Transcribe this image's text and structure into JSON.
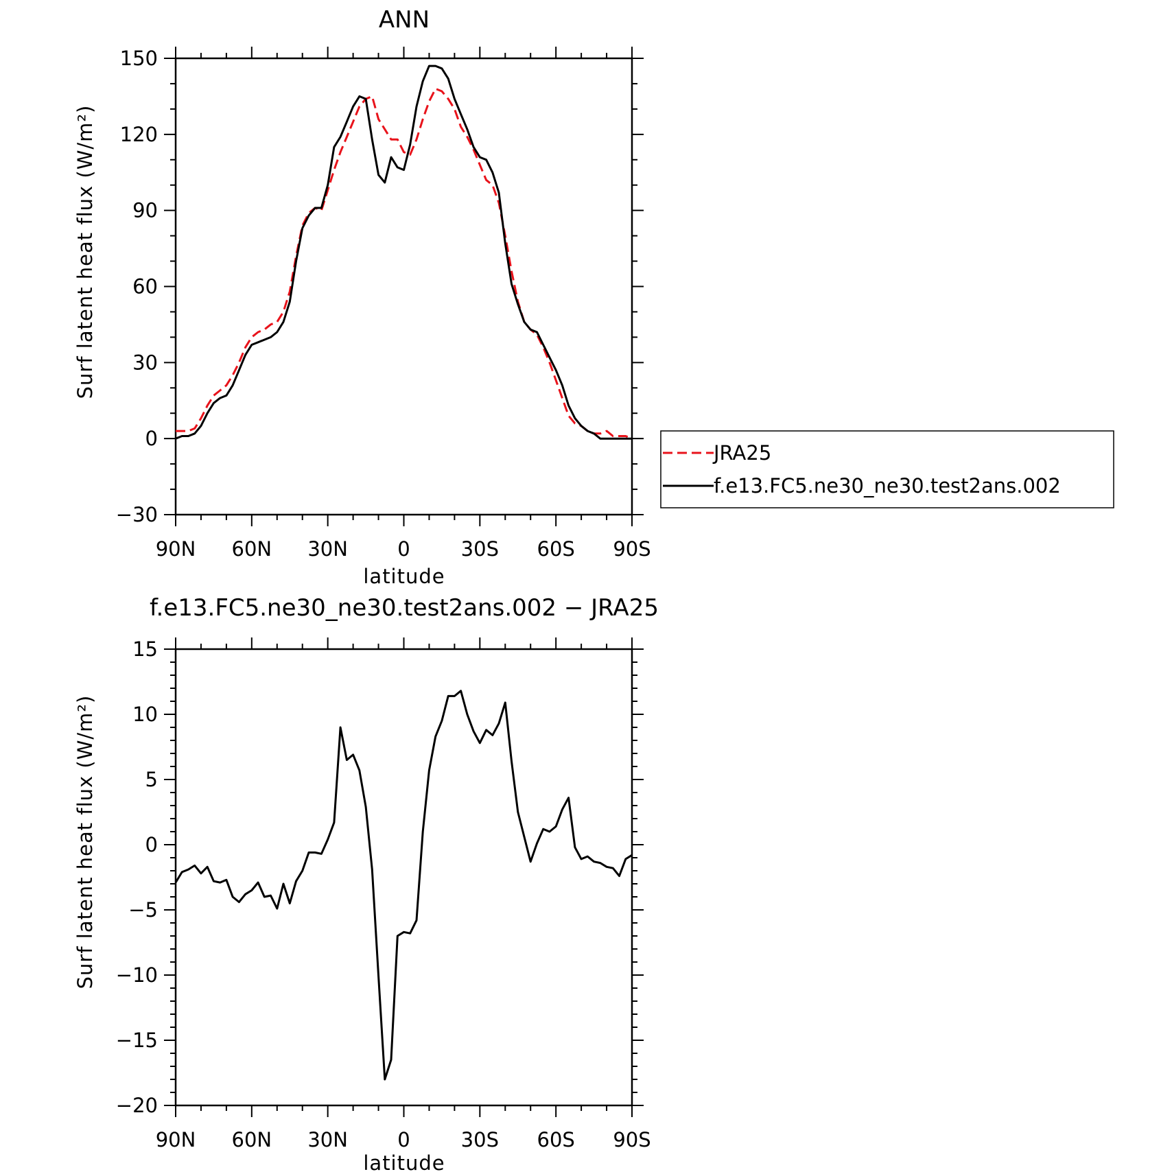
{
  "chart_data": [
    {
      "type": "line",
      "title": "ANN",
      "xlabel": "latitude",
      "ylabel": "Surf latent heat flux (W/m²)",
      "xlim": [
        90,
        -90
      ],
      "ylim": [
        -30,
        150
      ],
      "x_ticks": [
        {
          "value": 90,
          "label": "90N"
        },
        {
          "value": 60,
          "label": "60N"
        },
        {
          "value": 30,
          "label": "30N"
        },
        {
          "value": 0,
          "label": "0"
        },
        {
          "value": -30,
          "label": "30S"
        },
        {
          "value": -60,
          "label": "60S"
        },
        {
          "value": -90,
          "label": "90S"
        }
      ],
      "y_ticks": [
        {
          "value": 150,
          "label": "150"
        },
        {
          "value": 120,
          "label": "120"
        },
        {
          "value": 90,
          "label": "90"
        },
        {
          "value": 60,
          "label": "60"
        },
        {
          "value": 30,
          "label": "30"
        },
        {
          "value": 0,
          "label": "0"
        },
        {
          "value": -30,
          "label": "−30"
        }
      ],
      "legend": {
        "placement": "right",
        "entries": [
          {
            "name": "JRA25",
            "color": "#e8131b",
            "dash": "dashed"
          },
          {
            "name": "f.e13.FC5.ne30_ne30.test2ans.002",
            "color": "#000000",
            "dash": "solid"
          }
        ]
      },
      "series": [
        {
          "name": "JRA25",
          "color": "#e8131b",
          "dash": "dashed",
          "x": [
            90,
            87.5,
            85,
            82.5,
            80,
            77.5,
            75,
            72.5,
            70,
            67.5,
            65,
            62.5,
            60,
            57.5,
            55,
            52.5,
            50,
            47.5,
            45,
            42.5,
            40,
            37.5,
            35,
            32.5,
            30,
            27.5,
            25,
            22.5,
            20,
            17.5,
            15,
            12.5,
            10,
            7.5,
            5,
            2.5,
            0,
            -2.5,
            -5,
            -7.5,
            -10,
            -12.5,
            -15,
            -17.5,
            -20,
            -22.5,
            -25,
            -27.5,
            -30,
            -32.5,
            -35,
            -37.5,
            -40,
            -42.5,
            -45,
            -47.5,
            -50,
            -52.5,
            -55,
            -57.5,
            -60,
            -62.5,
            -65,
            -67.5,
            -70,
            -72.5,
            -75,
            -77.5,
            -80,
            -82.5,
            -85,
            -87.5,
            -90
          ],
          "values": [
            3,
            3,
            3,
            4,
            8,
            13,
            17,
            19,
            21,
            25,
            30,
            36,
            40,
            42,
            43,
            45,
            46,
            50,
            58,
            72,
            84,
            89,
            91,
            90,
            98,
            106,
            113,
            119,
            125,
            131,
            134,
            135,
            126,
            122,
            118,
            118,
            113,
            112,
            118,
            126,
            133,
            138,
            137,
            134,
            130,
            123,
            119,
            114,
            108,
            102,
            100,
            93,
            80,
            66,
            54,
            46,
            43,
            41,
            36,
            30,
            23,
            16,
            9,
            6,
            5,
            3,
            2,
            2,
            3,
            1,
            1,
            1,
            0
          ]
        },
        {
          "name": "f.e13.FC5.ne30_ne30.test2ans.002",
          "color": "#000000",
          "dash": "solid",
          "x": [
            90,
            87.5,
            85,
            82.5,
            80,
            77.5,
            75,
            72.5,
            70,
            67.5,
            65,
            62.5,
            60,
            57.5,
            55,
            52.5,
            50,
            47.5,
            45,
            42.5,
            40,
            37.5,
            35,
            32.5,
            30,
            27.5,
            25,
            22.5,
            20,
            17.5,
            15,
            12.5,
            10,
            7.5,
            5,
            2.5,
            0,
            -2.5,
            -5,
            -7.5,
            -10,
            -12.5,
            -15,
            -17.5,
            -20,
            -22.5,
            -25,
            -27.5,
            -30,
            -32.5,
            -35,
            -37.5,
            -40,
            -42.5,
            -45,
            -47.5,
            -50,
            -52.5,
            -55,
            -57.5,
            -60,
            -62.5,
            -65,
            -67.5,
            -70,
            -72.5,
            -75,
            -77.5,
            -80,
            -82.5,
            -85,
            -87.5,
            -90
          ],
          "values": [
            0,
            1,
            1,
            2,
            5,
            10,
            14,
            16,
            17,
            21,
            27,
            33,
            37,
            38,
            39,
            40,
            42,
            46,
            54,
            70,
            83,
            88,
            91,
            91,
            100,
            115,
            119,
            125,
            131,
            135,
            134,
            118,
            104,
            101,
            111,
            107,
            106,
            116,
            131,
            141,
            147,
            147,
            146,
            142,
            134,
            128,
            122,
            115,
            111,
            110,
            105,
            97,
            77,
            61,
            53,
            46,
            43,
            42,
            37,
            32,
            27,
            21,
            13,
            8,
            5,
            3,
            2,
            0,
            0,
            0,
            0,
            0,
            0
          ]
        }
      ]
    },
    {
      "type": "line",
      "title": "f.e13.FC5.ne30_ne30.test2ans.002 − JRA25",
      "xlabel": "latitude",
      "ylabel": "Surf latent heat flux (W/m²)",
      "xlim": [
        90,
        -90
      ],
      "ylim": [
        -20,
        15
      ],
      "x_ticks": [
        {
          "value": 90,
          "label": "90N"
        },
        {
          "value": 60,
          "label": "60N"
        },
        {
          "value": 30,
          "label": "30N"
        },
        {
          "value": 0,
          "label": "0"
        },
        {
          "value": -30,
          "label": "30S"
        },
        {
          "value": -60,
          "label": "60S"
        },
        {
          "value": -90,
          "label": "90S"
        }
      ],
      "y_ticks": [
        {
          "value": 15,
          "label": "15"
        },
        {
          "value": 10,
          "label": "10"
        },
        {
          "value": 5,
          "label": "5"
        },
        {
          "value": 0,
          "label": "0"
        },
        {
          "value": -5,
          "label": "−5"
        },
        {
          "value": -10,
          "label": "−10"
        },
        {
          "value": -15,
          "label": "−15"
        },
        {
          "value": -20,
          "label": "−20"
        }
      ],
      "series": [
        {
          "color": "#000000",
          "dash": "solid",
          "x": [
            90,
            87.5,
            85,
            82.5,
            80,
            77.5,
            75,
            72.5,
            70,
            67.5,
            65,
            62.5,
            60,
            57.5,
            55,
            52.5,
            50,
            47.5,
            45,
            42.5,
            40,
            37.5,
            35,
            32.5,
            30,
            27.5,
            25,
            22.5,
            20,
            17.5,
            15,
            12.5,
            10,
            7.5,
            5,
            2.5,
            0,
            -2.5,
            -5,
            -7.5,
            -10,
            -12.5,
            -15,
            -17.5,
            -20,
            -22.5,
            -25,
            -27.5,
            -30,
            -32.5,
            -35,
            -37.5,
            -40,
            -42.5,
            -45,
            -47.5,
            -50,
            -52.5,
            -55,
            -57.5,
            -60,
            -62.5,
            -65,
            -67.5,
            -70,
            -72.5,
            -75,
            -77.5,
            -80,
            -82.5,
            -85,
            -87.5,
            -90
          ],
          "values": [
            -2.9,
            -2.1,
            -1.9,
            -1.6,
            -2.2,
            -1.7,
            -2.8,
            -2.9,
            -2.7,
            -4.0,
            -4.4,
            -3.8,
            -3.5,
            -2.9,
            -4.0,
            -3.9,
            -4.9,
            -3.0,
            -4.5,
            -2.8,
            -2.0,
            -0.6,
            -0.6,
            -0.7,
            0.4,
            1.7,
            9.0,
            6.5,
            6.9,
            5.7,
            2.9,
            -1.9,
            -10.1,
            -18.0,
            -16.5,
            -7.0,
            -6.7,
            -6.8,
            -5.8,
            1.0,
            5.7,
            8.3,
            9.5,
            11.4,
            11.4,
            11.8,
            10.0,
            8.7,
            7.8,
            8.8,
            8.4,
            9.3,
            10.9,
            6.4,
            2.5,
            0.6,
            -1.3,
            0.1,
            1.2,
            1.0,
            1.4,
            2.7,
            3.6,
            -0.2,
            -1.1,
            -0.9,
            -1.3,
            -1.4,
            -1.7,
            -1.8,
            -2.4,
            -1.1,
            -0.8
          ]
        }
      ]
    }
  ]
}
